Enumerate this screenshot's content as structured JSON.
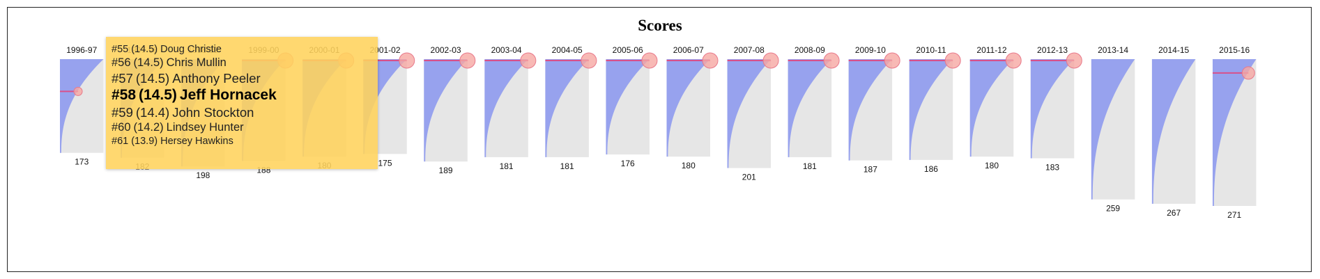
{
  "chart_data": {
    "type": "area",
    "title": "Scores",
    "columns": [
      {
        "season": "1996-97",
        "count": 173,
        "highlight_rank": 58
      },
      {
        "season": "1997-98",
        "count": 182,
        "highlight_rank": null
      },
      {
        "season": "1998-99",
        "count": 198,
        "highlight_rank": null
      },
      {
        "season": "1999-00",
        "count": 188,
        "highlight_rank": 1
      },
      {
        "season": "2000-01",
        "count": 180,
        "highlight_rank": 1
      },
      {
        "season": "2001-02",
        "count": 175,
        "highlight_rank": 1
      },
      {
        "season": "2002-03",
        "count": 189,
        "highlight_rank": 1
      },
      {
        "season": "2003-04",
        "count": 181,
        "highlight_rank": 1
      },
      {
        "season": "2004-05",
        "count": 181,
        "highlight_rank": 1
      },
      {
        "season": "2005-06",
        "count": 176,
        "highlight_rank": 1
      },
      {
        "season": "2006-07",
        "count": 180,
        "highlight_rank": 1
      },
      {
        "season": "2007-08",
        "count": 201,
        "highlight_rank": 1
      },
      {
        "season": "2008-09",
        "count": 181,
        "highlight_rank": 1
      },
      {
        "season": "2009-10",
        "count": 187,
        "highlight_rank": 1
      },
      {
        "season": "2010-11",
        "count": 186,
        "highlight_rank": 1
      },
      {
        "season": "2011-12",
        "count": 180,
        "highlight_rank": 1
      },
      {
        "season": "2012-13",
        "count": 183,
        "highlight_rank": 1
      },
      {
        "season": "2013-14",
        "count": 259,
        "highlight_rank": null
      },
      {
        "season": "2014-15",
        "count": 267,
        "highlight_rank": null
      },
      {
        "season": "2015-16",
        "count": 271,
        "highlight_rank": 24
      }
    ],
    "tooltip": {
      "season": "1996-97",
      "entries": [
        {
          "rank": "#55",
          "score": "(14.5)",
          "name": "Doug Christie",
          "emphasis": 1
        },
        {
          "rank": "#56",
          "score": "(14.5)",
          "name": "Chris Mullin",
          "emphasis": 2
        },
        {
          "rank": "#57",
          "score": "(14.5)",
          "name": "Anthony Peeler",
          "emphasis": 3
        },
        {
          "rank": "#58",
          "score": "(14.5)",
          "name": "Jeff Hornacek",
          "emphasis": 4
        },
        {
          "rank": "#59",
          "score": "(14.4)",
          "name": "John Stockton",
          "emphasis": 3
        },
        {
          "rank": "#60",
          "score": "(14.2)",
          "name": "Lindsey Hunter",
          "emphasis": 2
        },
        {
          "rank": "#61",
          "score": "(13.9)",
          "name": "Hersey Hawkins",
          "emphasis": 1
        }
      ]
    },
    "colors": {
      "area": "#97a2ee",
      "track": "#e6e6e6",
      "marker_fill": "#f6a7a3",
      "marker_stroke": "#e8788a",
      "marker_line": "#d9508a",
      "tooltip_bg": "#ffd35c"
    },
    "legend": "none",
    "grid": false
  }
}
